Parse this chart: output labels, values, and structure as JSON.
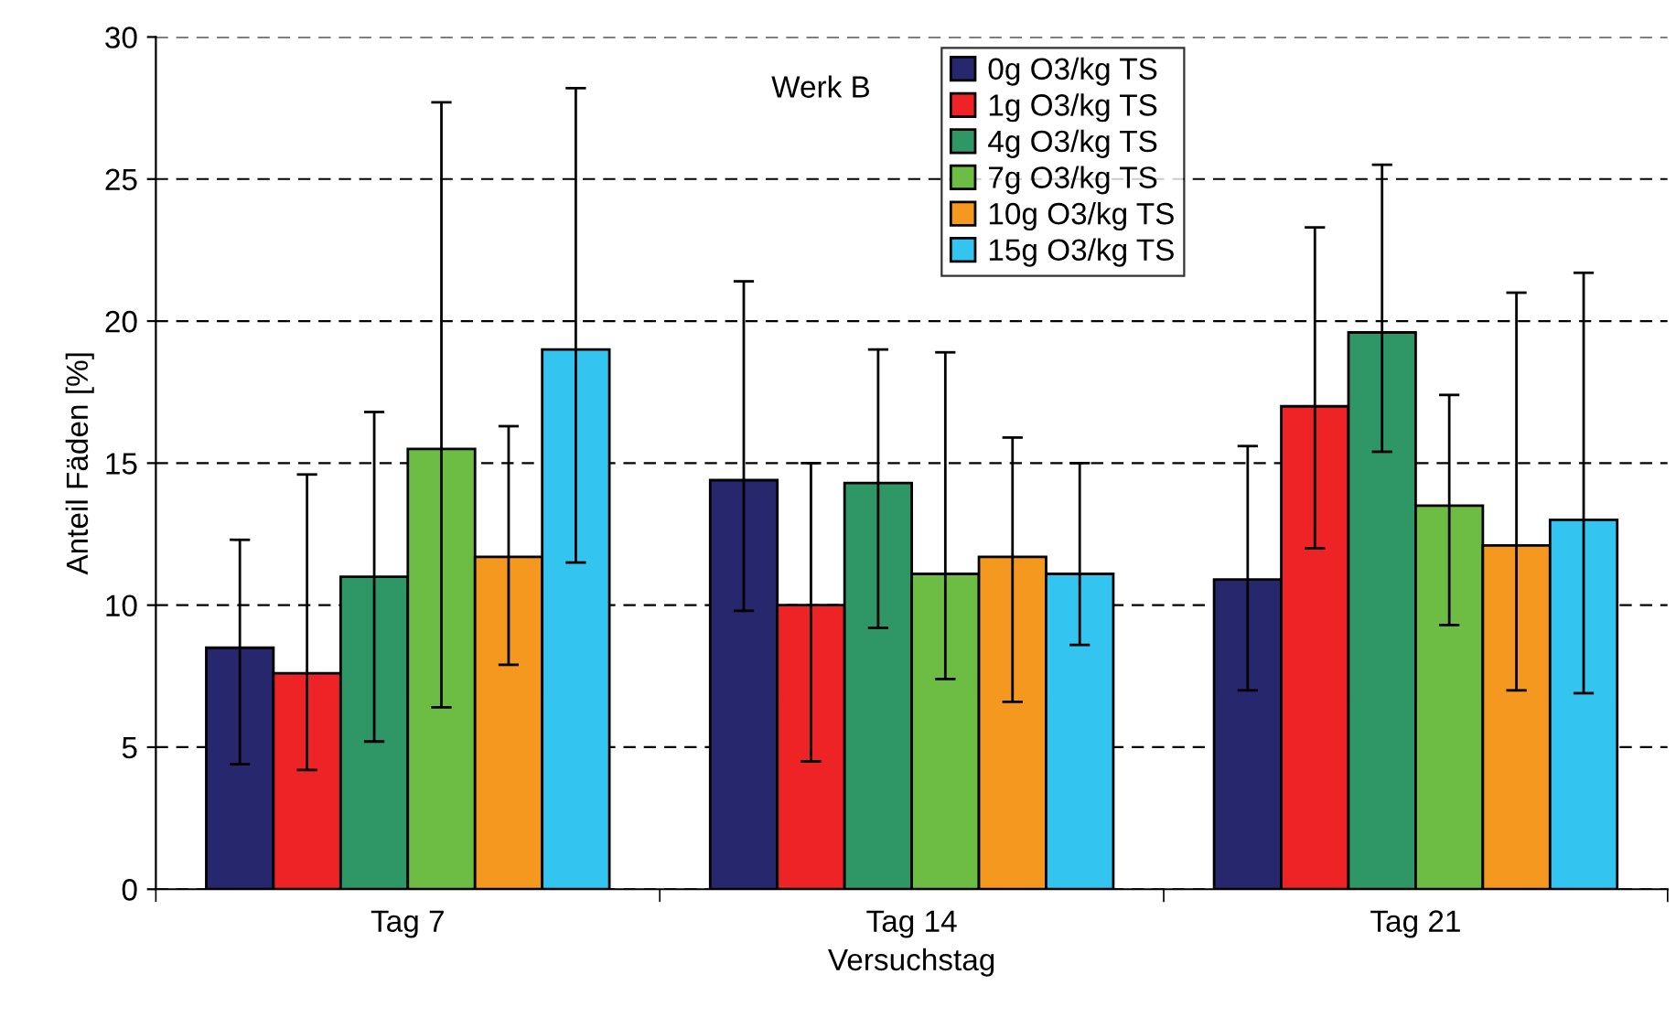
{
  "chart_data": {
    "type": "bar",
    "title": "Werk B",
    "xlabel": "Versuchstag",
    "ylabel": "Anteil Fäden [%]",
    "categories": [
      "Tag 7",
      "Tag 14",
      "Tag 21"
    ],
    "series": [
      {
        "name": "0g O3/kg TS",
        "color": "#27276d",
        "values": [
          8.5,
          14.4,
          10.9
        ],
        "errors": [
          [
            4.4,
            12.3
          ],
          [
            9.8,
            21.4
          ],
          [
            7.0,
            15.6
          ]
        ]
      },
      {
        "name": "1g O3/kg TS",
        "color": "#ee2326",
        "values": [
          7.6,
          10.0,
          17.0
        ],
        "errors": [
          [
            4.2,
            14.6
          ],
          [
            4.5,
            15.0
          ],
          [
            12.0,
            23.3
          ]
        ]
      },
      {
        "name": "4g O3/kg TS",
        "color": "#2f9665",
        "values": [
          11.0,
          14.3,
          19.6
        ],
        "errors": [
          [
            5.2,
            16.8
          ],
          [
            9.2,
            19.0
          ],
          [
            15.4,
            25.5
          ]
        ]
      },
      {
        "name": "7g O3/kg TS",
        "color": "#6dbd45",
        "values": [
          15.5,
          11.1,
          13.5
        ],
        "errors": [
          [
            6.4,
            27.7
          ],
          [
            7.4,
            18.9
          ],
          [
            9.3,
            17.4
          ]
        ]
      },
      {
        "name": "10g O3/kg TS",
        "color": "#f4981f",
        "values": [
          11.7,
          11.7,
          12.1
        ],
        "errors": [
          [
            7.9,
            16.3
          ],
          [
            6.6,
            15.9
          ],
          [
            7.0,
            21.0
          ]
        ]
      },
      {
        "name": "15g O3/kg TS",
        "color": "#33c4ef",
        "values": [
          19.0,
          11.1,
          13.0
        ],
        "errors": [
          [
            11.5,
            28.2
          ],
          [
            8.6,
            15.0
          ],
          [
            6.9,
            21.7
          ]
        ]
      }
    ],
    "ylim": [
      0,
      30
    ],
    "yticks": [
      0,
      5,
      10,
      15,
      20,
      25,
      30
    ],
    "grid": "y",
    "legend": "top"
  }
}
